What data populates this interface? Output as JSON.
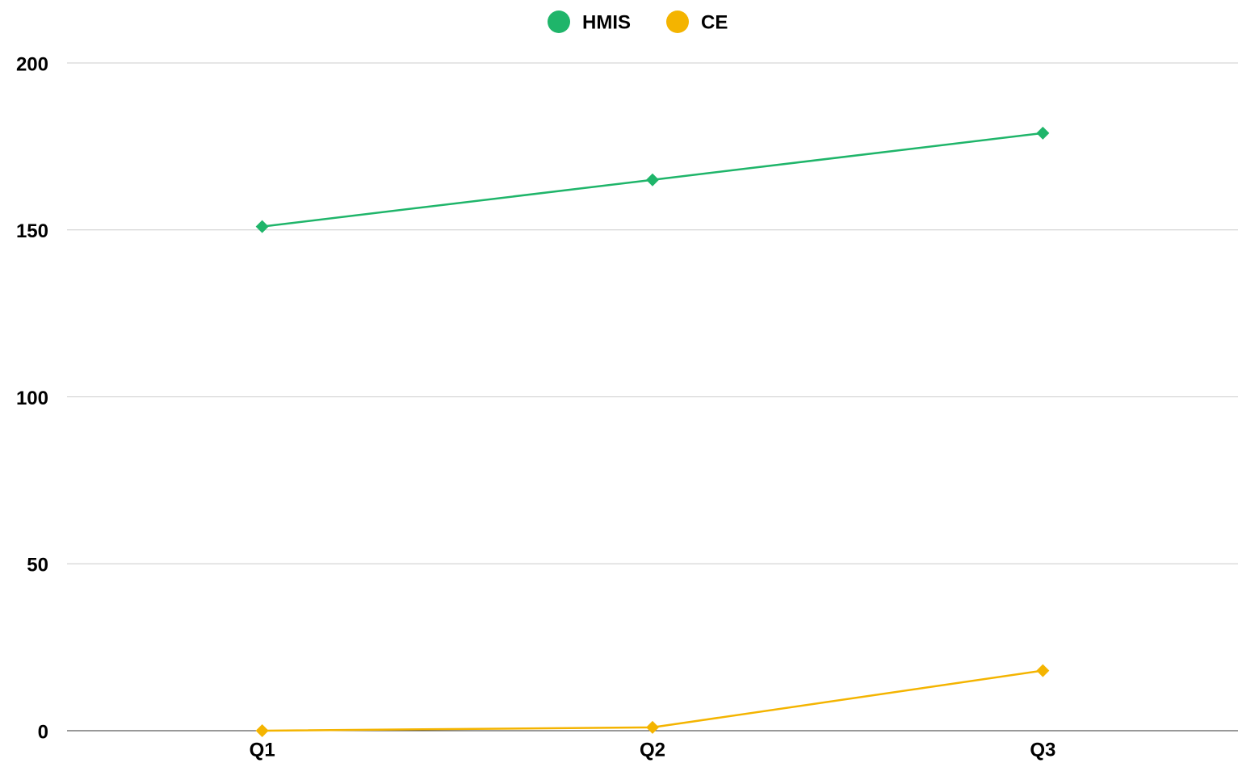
{
  "chart_data": {
    "type": "line",
    "categories": [
      "Q1",
      "Q2",
      "Q3"
    ],
    "series": [
      {
        "name": "HMIS",
        "color": "#1fb56a",
        "values": [
          151,
          165,
          179
        ]
      },
      {
        "name": "CE",
        "color": "#f4b400",
        "values": [
          0,
          1,
          18
        ]
      }
    ],
    "ylim": [
      0,
      200
    ],
    "yticks": [
      0,
      50,
      100,
      150,
      200
    ],
    "grid": true,
    "legend": "top"
  }
}
